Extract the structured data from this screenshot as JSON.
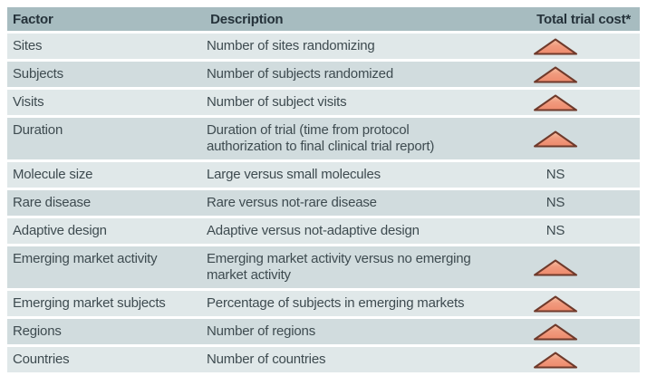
{
  "table": {
    "headers": {
      "factor": "Factor",
      "description": "Description",
      "cost": "Total trial cost*"
    },
    "ns_label": "NS",
    "cost_icon": "increase-triangle-icon",
    "rows": [
      {
        "factor": "Sites",
        "description": "Number of sites randomizing",
        "cost": "up"
      },
      {
        "factor": "Subjects",
        "description": "Number of subjects randomized",
        "cost": "up"
      },
      {
        "factor": "Visits",
        "description": "Number of subject visits",
        "cost": "up"
      },
      {
        "factor": "Duration",
        "description": "Duration of trial (time from protocol authorization to final clinical trial report)",
        "cost": "up"
      },
      {
        "factor": "Molecule size",
        "description": "Large versus small molecules",
        "cost": "NS"
      },
      {
        "factor": "Rare disease",
        "description": "Rare versus not-rare disease",
        "cost": "NS"
      },
      {
        "factor": "Adaptive design",
        "description": "Adaptive versus not-adaptive design",
        "cost": "NS"
      },
      {
        "factor": "Emerging market activity",
        "description": "Emerging market activity versus no emerging market activity",
        "cost": "up"
      },
      {
        "factor": "Emerging market subjects",
        "description": "Percentage of subjects in emerging markets",
        "cost": "up"
      },
      {
        "factor": "Regions",
        "description": "Number of regions",
        "cost": "up"
      },
      {
        "factor": "Countries",
        "description": "Number of countries",
        "cost": "up"
      }
    ],
    "colors": {
      "header_bg": "#a7bcc0",
      "row_light": "#e0e8e9",
      "row_dark": "#d1dcde",
      "text": "#3e4b50",
      "header_text": "#25323a",
      "triangle_fill_top": "#f7c0a4",
      "triangle_fill_bottom": "#ee8a6d",
      "triangle_stroke": "#6f3a2b"
    }
  }
}
